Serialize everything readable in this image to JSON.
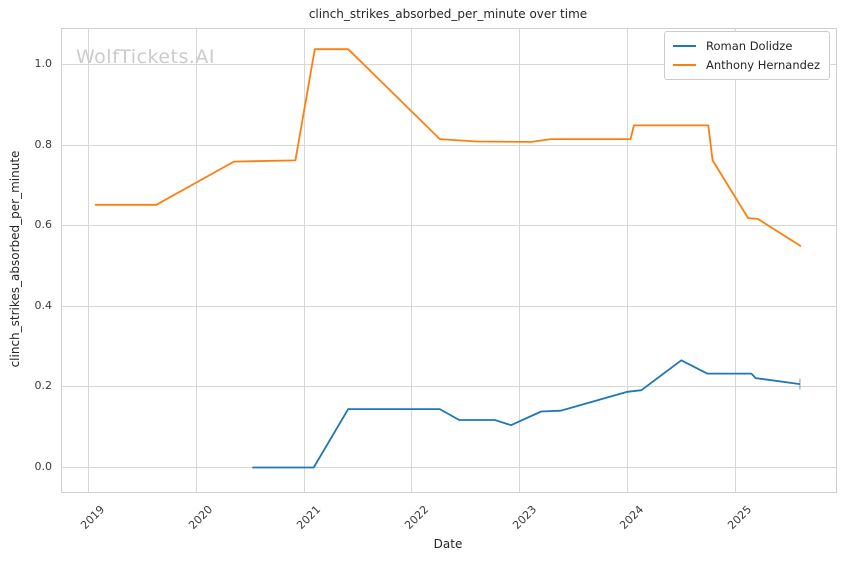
{
  "watermark": "WolfTickets.AI",
  "chart_data": {
    "type": "line",
    "title": "clinch_strikes_absorbed_per_minute over time",
    "xlabel": "Date",
    "ylabel": "clinch_strikes_absorbed_per_minute",
    "grid": true,
    "legend_position": "upper right",
    "xlim": [
      2018.755,
      2025.935
    ],
    "ylim": [
      -0.0607,
      1.0881
    ],
    "x_ticks": [
      2019,
      2020,
      2021,
      2022,
      2023,
      2024,
      2025
    ],
    "y_ticks": [
      0.0,
      0.2,
      0.4,
      0.6,
      0.8,
      1.0
    ],
    "y_tick_labels": [
      "0.0",
      "0.2",
      "0.4",
      "0.6",
      "0.8",
      "1.0"
    ],
    "series": [
      {
        "name": "Roman Dolidze",
        "color": "#1f77b4",
        "end_tick": true,
        "points": [
          [
            2020.52,
            0.0
          ],
          [
            2021.09,
            0.0
          ],
          [
            2021.41,
            0.145
          ],
          [
            2022.26,
            0.145
          ],
          [
            2022.44,
            0.118
          ],
          [
            2022.77,
            0.118
          ],
          [
            2022.92,
            0.105
          ],
          [
            2023.2,
            0.139
          ],
          [
            2023.38,
            0.141
          ],
          [
            2024.0,
            0.188
          ],
          [
            2024.13,
            0.192
          ],
          [
            2024.5,
            0.266
          ],
          [
            2024.74,
            0.233
          ],
          [
            2025.15,
            0.233
          ],
          [
            2025.19,
            0.222
          ],
          [
            2025.6,
            0.207
          ]
        ]
      },
      {
        "name": "Anthony Hernandez",
        "color": "#ff7f0e",
        "end_tick": false,
        "points": [
          [
            2019.06,
            0.652
          ],
          [
            2019.63,
            0.652
          ],
          [
            2020.35,
            0.759
          ],
          [
            2020.92,
            0.762
          ],
          [
            2021.1,
            1.038
          ],
          [
            2021.41,
            1.038
          ],
          [
            2022.26,
            0.815
          ],
          [
            2022.6,
            0.809
          ],
          [
            2023.11,
            0.808
          ],
          [
            2023.29,
            0.815
          ],
          [
            2024.03,
            0.815
          ],
          [
            2024.06,
            0.849
          ],
          [
            2024.75,
            0.849
          ],
          [
            2024.79,
            0.762
          ],
          [
            2025.12,
            0.619
          ],
          [
            2025.21,
            0.617
          ],
          [
            2025.61,
            0.549
          ]
        ]
      }
    ]
  }
}
